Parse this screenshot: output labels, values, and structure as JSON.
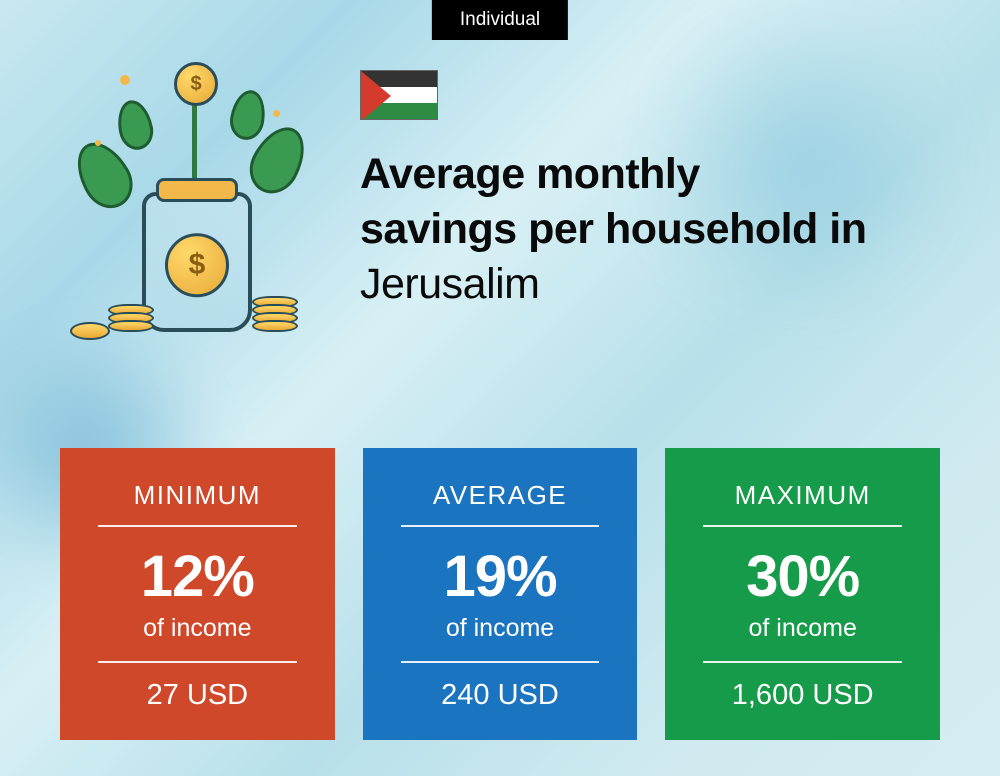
{
  "badge": {
    "label": "Individual"
  },
  "title": {
    "line1": "Average monthly",
    "line2": "savings per household in",
    "location": "Jerusalim"
  },
  "flag": {
    "stripe_colors": [
      "#333333",
      "#ffffff",
      "#2e8b44"
    ],
    "triangle_color": "#d43b2c"
  },
  "cards": [
    {
      "key": "min",
      "label": "MINIMUM",
      "percent": "12%",
      "sub": "of income",
      "amount": "27 USD",
      "background_color": "#d0482a"
    },
    {
      "key": "avg",
      "label": "AVERAGE",
      "percent": "19%",
      "sub": "of income",
      "amount": "240 USD",
      "background_color": "#1b74c0"
    },
    {
      "key": "max",
      "label": "MAXIMUM",
      "percent": "30%",
      "sub": "of income",
      "amount": "1,600 USD",
      "background_color": "#159b49"
    }
  ],
  "styling": {
    "card_label_fontsize": 26,
    "card_percent_fontsize": 58,
    "card_sub_fontsize": 25,
    "card_amount_fontsize": 29,
    "title_fontsize": 43,
    "title_fontweight": 900,
    "badge_bg": "#000000",
    "badge_color": "#ffffff",
    "text_color": "#ffffff",
    "page_bg_gradient": [
      "#c8e8f0",
      "#a8d8e8",
      "#d8f0f5",
      "#b8e0ea",
      "#cfeaf0",
      "#d5edf2"
    ]
  }
}
